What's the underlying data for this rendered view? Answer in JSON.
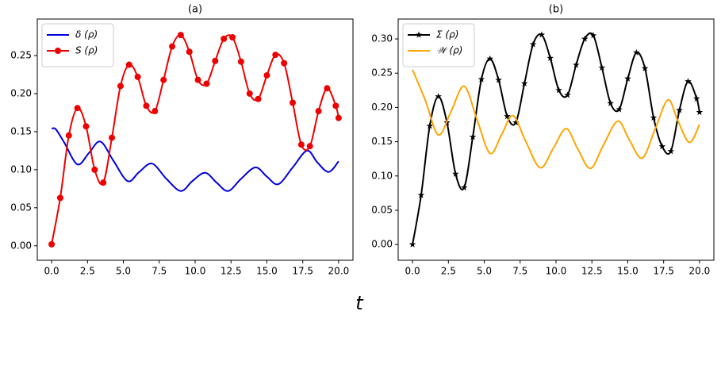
{
  "xlabel": "t",
  "chart_data": [
    {
      "type": "line",
      "title": "(a)",
      "legend": "upper left",
      "grid": false,
      "xlim": [
        -1,
        21
      ],
      "ylim": [
        -0.019,
        0.298
      ],
      "xticks": [
        {
          "value": 0,
          "label": "0.0"
        },
        {
          "value": 2.5,
          "label": "2.5"
        },
        {
          "value": 5,
          "label": "5.0"
        },
        {
          "value": 7.5,
          "label": "7.5"
        },
        {
          "value": 10,
          "label": "10.0"
        },
        {
          "value": 12.5,
          "label": "12.5"
        },
        {
          "value": 15,
          "label": "15.0"
        },
        {
          "value": 17.5,
          "label": "17.5"
        },
        {
          "value": 20,
          "label": "20.0"
        }
      ],
      "yticks": [
        {
          "value": 0,
          "label": "0.00"
        },
        {
          "value": 0.05,
          "label": "0.05"
        },
        {
          "value": 0.1,
          "label": "0.10"
        },
        {
          "value": 0.15,
          "label": "0.15"
        },
        {
          "value": 0.2,
          "label": "0.20"
        },
        {
          "value": 0.25,
          "label": "0.25"
        }
      ],
      "series": [
        {
          "name": "δ (ρ)",
          "color": "#0000dd",
          "marker": "none",
          "x": [
            0,
            0.3,
            0.9,
            1.8,
            2.6,
            3.4,
            4.3,
            5.3,
            6.1,
            7.0,
            8.0,
            9.0,
            9.8,
            10.7,
            11.5,
            12.3,
            13.2,
            14.2,
            15.0,
            15.8,
            16.8,
            17.8,
            18.5,
            19.3,
            20
          ],
          "values": [
            0.154,
            0.153,
            0.135,
            0.107,
            0.122,
            0.137,
            0.112,
            0.085,
            0.097,
            0.108,
            0.088,
            0.072,
            0.085,
            0.096,
            0.083,
            0.072,
            0.088,
            0.103,
            0.091,
            0.081,
            0.103,
            0.125,
            0.11,
            0.097,
            0.111
          ]
        },
        {
          "name": "S (ρ)",
          "color": "#ee0000",
          "marker": "circle",
          "x": [
            0,
            0.6,
            1.2,
            1.8,
            2.4,
            3.0,
            3.6,
            4.2,
            4.8,
            5.4,
            6.0,
            6.6,
            7.2,
            7.8,
            8.4,
            9.0,
            9.6,
            10.2,
            10.8,
            11.4,
            12.0,
            12.6,
            13.2,
            13.8,
            14.4,
            15.0,
            15.6,
            16.2,
            16.8,
            17.4,
            18.0,
            18.6,
            19.2,
            19.8,
            20
          ],
          "values": [
            0.002,
            0.063,
            0.145,
            0.181,
            0.157,
            0.1,
            0.083,
            0.142,
            0.21,
            0.238,
            0.222,
            0.184,
            0.177,
            0.218,
            0.262,
            0.277,
            0.255,
            0.218,
            0.213,
            0.243,
            0.272,
            0.274,
            0.242,
            0.2,
            0.193,
            0.224,
            0.251,
            0.24,
            0.188,
            0.133,
            0.131,
            0.177,
            0.207,
            0.184,
            0.168
          ]
        }
      ]
    },
    {
      "type": "line",
      "title": "(b)",
      "legend": "upper left",
      "grid": false,
      "xlim": [
        -1,
        21
      ],
      "ylim": [
        -0.023,
        0.329
      ],
      "xticks": [
        {
          "value": 0,
          "label": "0.0"
        },
        {
          "value": 2.5,
          "label": "2.5"
        },
        {
          "value": 5,
          "label": "5.0"
        },
        {
          "value": 7.5,
          "label": "7.5"
        },
        {
          "value": 10,
          "label": "10.0"
        },
        {
          "value": 12.5,
          "label": "12.5"
        },
        {
          "value": 15,
          "label": "15.0"
        },
        {
          "value": 17.5,
          "label": "17.5"
        },
        {
          "value": 20,
          "label": "20.0"
        }
      ],
      "yticks": [
        {
          "value": 0,
          "label": "0.00"
        },
        {
          "value": 0.05,
          "label": "0.05"
        },
        {
          "value": 0.1,
          "label": "0.10"
        },
        {
          "value": 0.15,
          "label": "0.15"
        },
        {
          "value": 0.2,
          "label": "0.20"
        },
        {
          "value": 0.25,
          "label": "0.25"
        },
        {
          "value": 0.3,
          "label": "0.30"
        }
      ],
      "series": [
        {
          "name": "Σ (ρ)",
          "color": "#000000",
          "marker": "star",
          "x": [
            0,
            0.6,
            1.2,
            1.8,
            2.4,
            3.0,
            3.6,
            4.2,
            4.8,
            5.4,
            6.0,
            6.6,
            7.2,
            7.8,
            8.4,
            9.0,
            9.6,
            10.2,
            10.8,
            11.4,
            12.0,
            12.6,
            13.2,
            13.8,
            14.4,
            15.0,
            15.6,
            16.2,
            16.8,
            17.4,
            18.0,
            18.6,
            19.2,
            19.8,
            20
          ],
          "values": [
            0.0,
            0.072,
            0.173,
            0.216,
            0.178,
            0.103,
            0.083,
            0.157,
            0.241,
            0.271,
            0.24,
            0.187,
            0.178,
            0.235,
            0.292,
            0.306,
            0.272,
            0.225,
            0.218,
            0.262,
            0.3,
            0.305,
            0.258,
            0.206,
            0.197,
            0.242,
            0.28,
            0.257,
            0.185,
            0.143,
            0.136,
            0.196,
            0.238,
            0.213,
            0.193
          ]
        },
        {
          "name": "𝒲 (ρ)",
          "color": "#ffa500",
          "marker": "none",
          "x": [
            0,
            0.9,
            1.8,
            2.7,
            3.6,
            4.5,
            5.4,
            6.2,
            7.0,
            7.9,
            8.9,
            9.8,
            10.7,
            11.5,
            12.4,
            13.3,
            14.3,
            15.1,
            16.0,
            16.9,
            17.8,
            18.5,
            19.3,
            20
          ],
          "values": [
            0.255,
            0.21,
            0.16,
            0.195,
            0.231,
            0.182,
            0.133,
            0.16,
            0.188,
            0.15,
            0.112,
            0.14,
            0.169,
            0.14,
            0.111,
            0.145,
            0.18,
            0.153,
            0.126,
            0.168,
            0.211,
            0.18,
            0.149,
            0.175
          ]
        }
      ]
    }
  ]
}
